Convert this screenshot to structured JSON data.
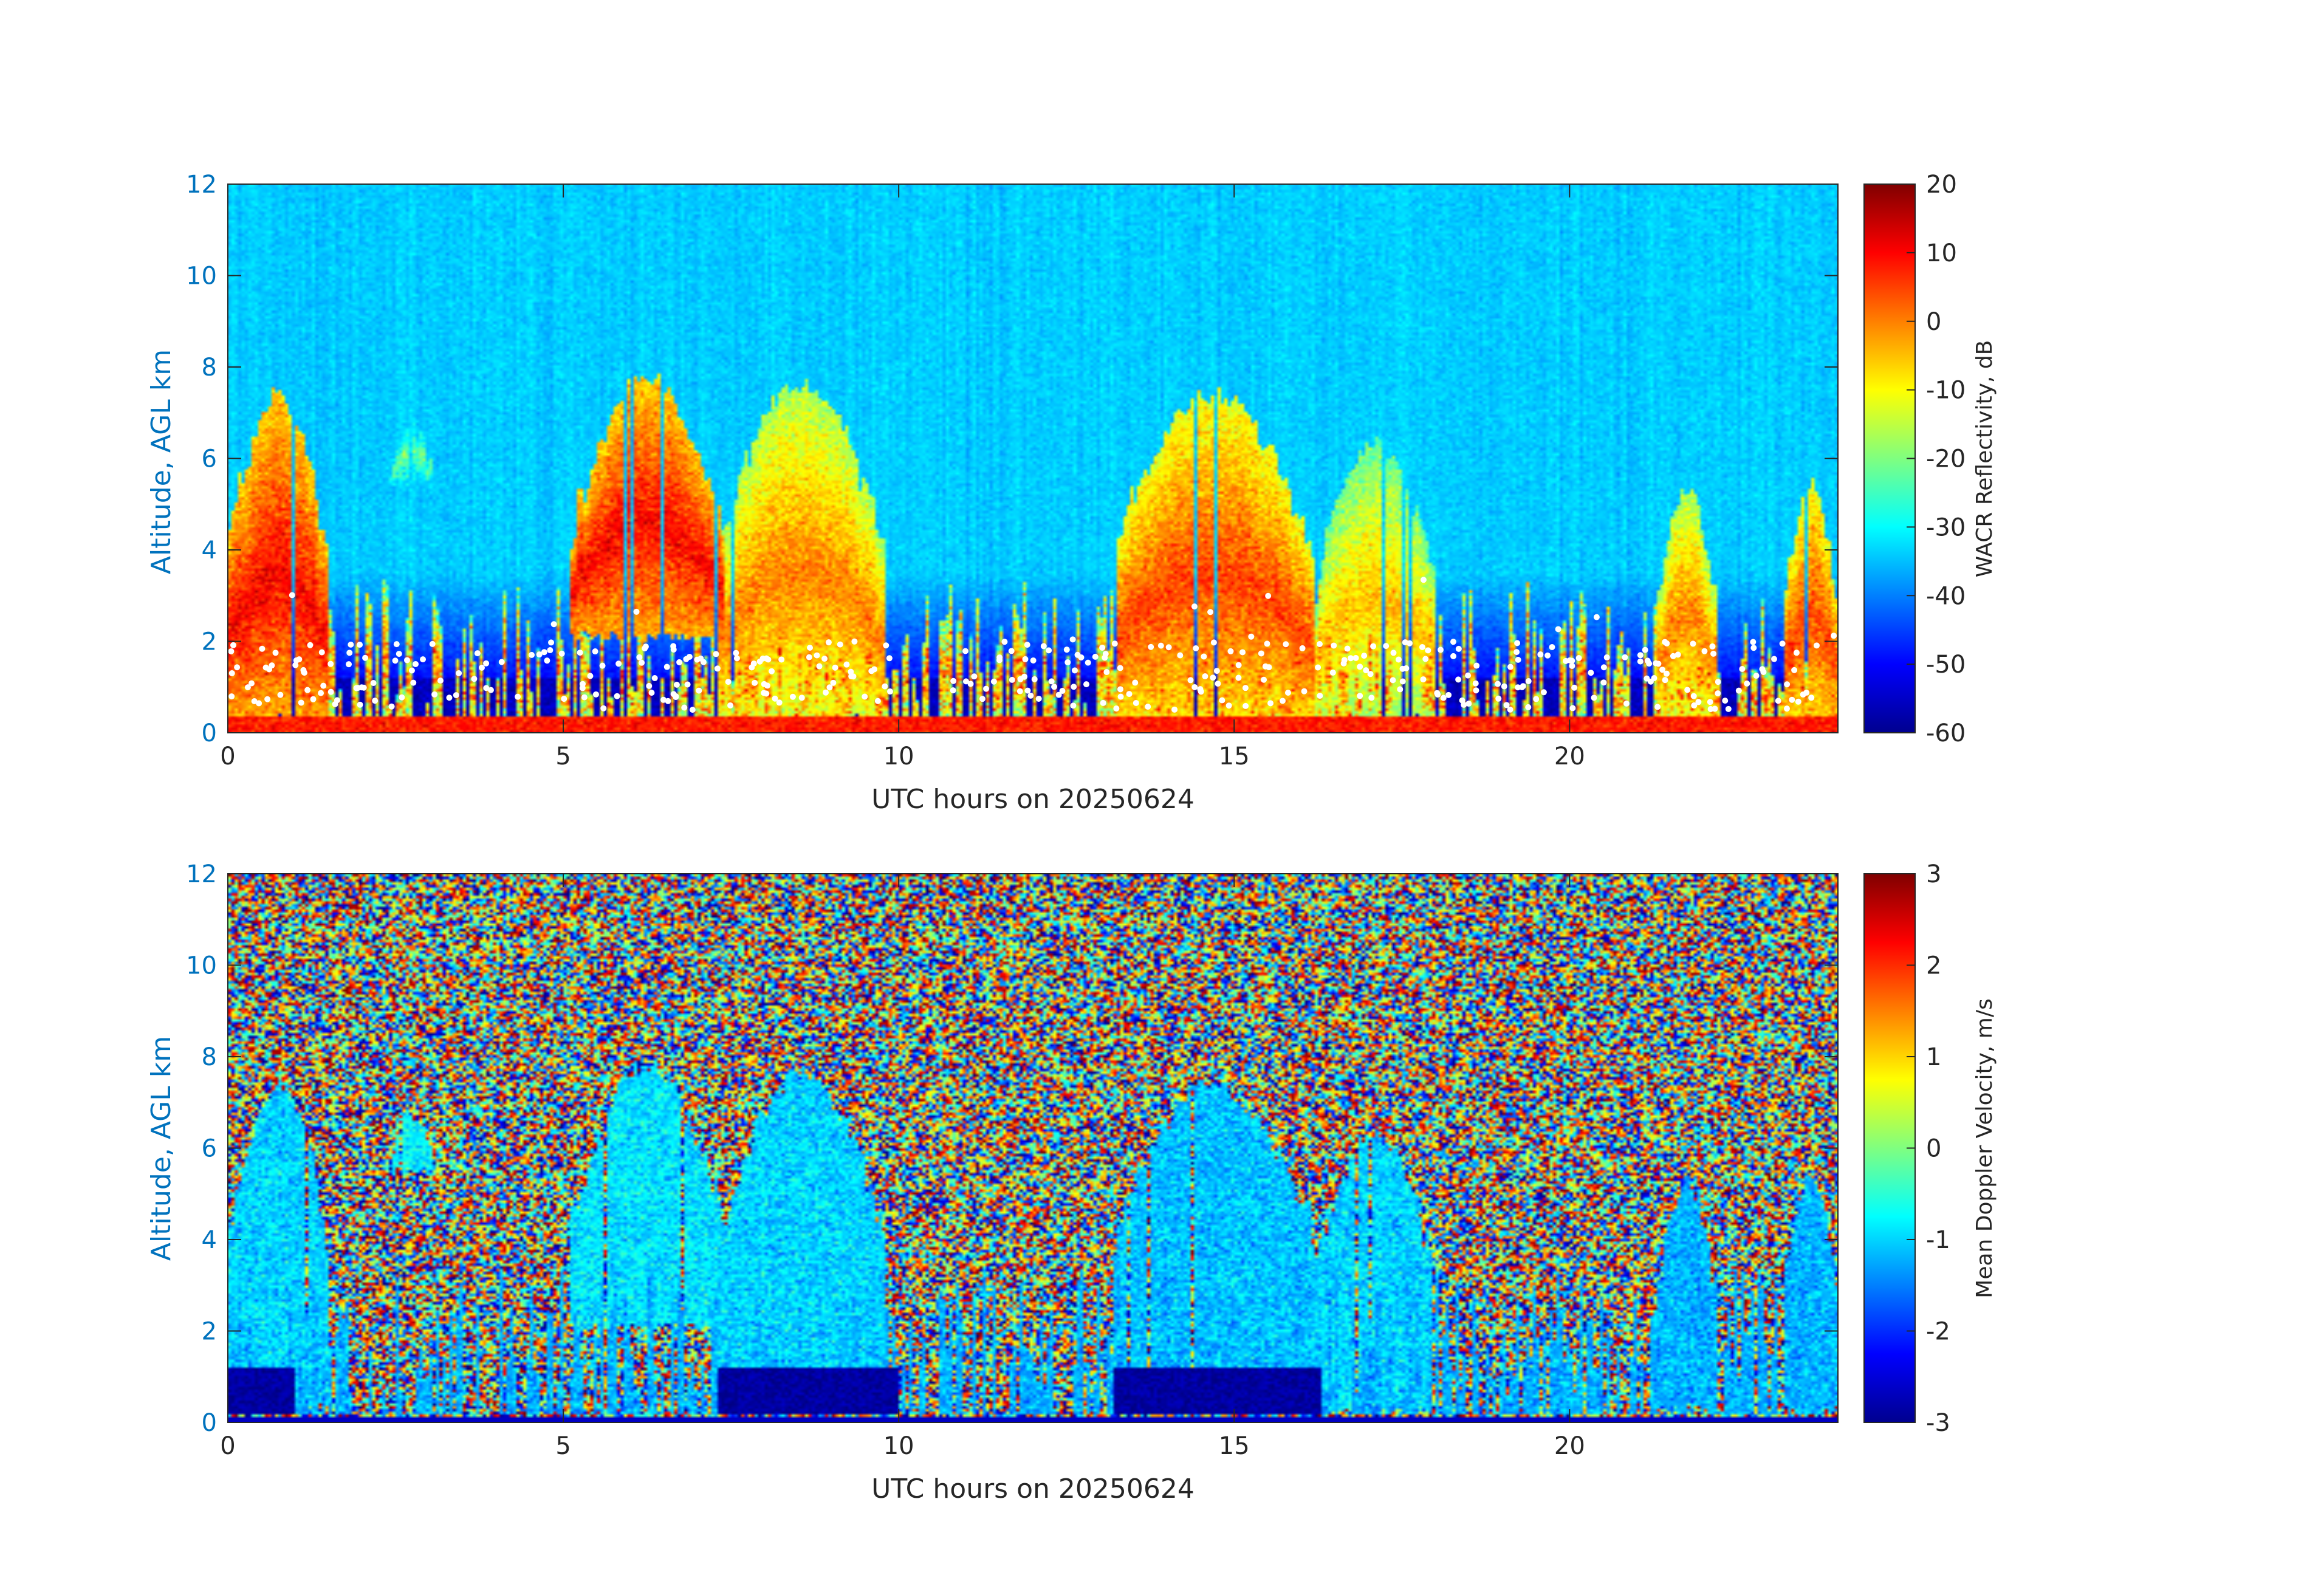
{
  "chart_data": [
    {
      "type": "heatmap",
      "variable": "reflectivity",
      "xlabel": "UTC hours on 20250624",
      "ylabel": "Altitude, AGL km",
      "xlim": [
        0,
        24
      ],
      "ylim": [
        0,
        12
      ],
      "xticks": [
        0,
        5,
        10,
        15,
        20
      ],
      "xtick_labels": [
        "0",
        "5",
        "10",
        "15",
        "20"
      ],
      "yticks": [
        0,
        2,
        4,
        6,
        8,
        10,
        12
      ],
      "ytick_labels": [
        "0",
        "2",
        "4",
        "6",
        "8",
        "10",
        "12"
      ],
      "colorbar": {
        "label": "WACR Reflectivity, dB",
        "colormap": "jet",
        "range": [
          -60,
          20
        ],
        "ticks": [
          20,
          10,
          0,
          -10,
          -20,
          -30,
          -40,
          -50,
          -60
        ],
        "tick_labels": [
          "20",
          "10",
          "0",
          "-10",
          "-20",
          "-30",
          "-40",
          "-50",
          "-60"
        ]
      },
      "background_value": -34,
      "cloud_features": [
        {
          "t_start": 0.0,
          "t_end": 1.5,
          "base_km": 0.2,
          "top_km": 7.6,
          "peak_dB": 10
        },
        {
          "t_start": 2.2,
          "t_end": 3.3,
          "base_km": 5.4,
          "top_km": 7.0,
          "peak_dB": -20
        },
        {
          "t_start": 5.1,
          "t_end": 7.4,
          "base_km": 2.0,
          "top_km": 8.0,
          "peak_dB": 10
        },
        {
          "t_start": 7.3,
          "t_end": 9.8,
          "base_km": 0.2,
          "top_km": 7.8,
          "peak_dB": 0
        },
        {
          "t_start": 13.2,
          "t_end": 16.2,
          "base_km": 0.2,
          "top_km": 7.6,
          "peak_dB": 5
        },
        {
          "t_start": 16.2,
          "t_end": 18.0,
          "base_km": 0.2,
          "top_km": 6.5,
          "peak_dB": -5
        },
        {
          "t_start": 21.3,
          "t_end": 22.2,
          "base_km": 0.2,
          "top_km": 5.5,
          "peak_dB": 0
        },
        {
          "t_start": 23.2,
          "t_end": 24.0,
          "base_km": 0.2,
          "top_km": 5.6,
          "peak_dB": 5
        }
      ],
      "overlay": {
        "marker": "white dots",
        "description_level_km": [
          0.5,
          2.0
        ]
      }
    },
    {
      "type": "heatmap",
      "variable": "doppler_velocity",
      "xlabel": "UTC hours on 20250624",
      "ylabel": "Altitude, AGL km",
      "xlim": [
        0,
        24
      ],
      "ylim": [
        0,
        12
      ],
      "xticks": [
        0,
        5,
        10,
        15,
        20
      ],
      "xtick_labels": [
        "0",
        "5",
        "10",
        "15",
        "20"
      ],
      "yticks": [
        0,
        2,
        4,
        6,
        8,
        10,
        12
      ],
      "ytick_labels": [
        "0",
        "2",
        "4",
        "6",
        "8",
        "10",
        "12"
      ],
      "colorbar": {
        "label": "Mean Doppler Velocity, m/s",
        "colormap": "jet",
        "range": [
          -3,
          3
        ],
        "ticks": [
          3,
          2,
          1,
          0,
          -1,
          -2,
          -3
        ],
        "tick_labels": [
          "3",
          "2",
          "1",
          "0",
          "-1",
          "-2",
          "-3"
        ]
      },
      "background": "noise",
      "cloud_features": [
        {
          "t_start": 0.0,
          "t_end": 1.5,
          "base_km": 0.2,
          "top_km": 7.6,
          "mean_ms": -1.0
        },
        {
          "t_start": 2.2,
          "t_end": 3.3,
          "base_km": 5.4,
          "top_km": 7.0,
          "mean_ms": -0.8
        },
        {
          "t_start": 5.1,
          "t_end": 7.4,
          "base_km": 2.0,
          "top_km": 8.0,
          "mean_ms": -0.9
        },
        {
          "t_start": 7.3,
          "t_end": 9.8,
          "base_km": 0.2,
          "top_km": 7.8,
          "mean_ms": -1.0
        },
        {
          "t_start": 13.2,
          "t_end": 16.2,
          "base_km": 0.2,
          "top_km": 7.6,
          "mean_ms": -1.1
        },
        {
          "t_start": 16.2,
          "t_end": 18.0,
          "base_km": 0.2,
          "top_km": 6.5,
          "mean_ms": -1.0
        },
        {
          "t_start": 21.3,
          "t_end": 22.2,
          "base_km": 0.2,
          "top_km": 5.5,
          "mean_ms": -1.2
        },
        {
          "t_start": 23.2,
          "t_end": 24.0,
          "base_km": 0.2,
          "top_km": 5.6,
          "mean_ms": -1.2
        }
      ],
      "near_surface_layer": {
        "base_km": 0.2,
        "top_km": 1.2,
        "mean_ms": -3
      }
    }
  ]
}
